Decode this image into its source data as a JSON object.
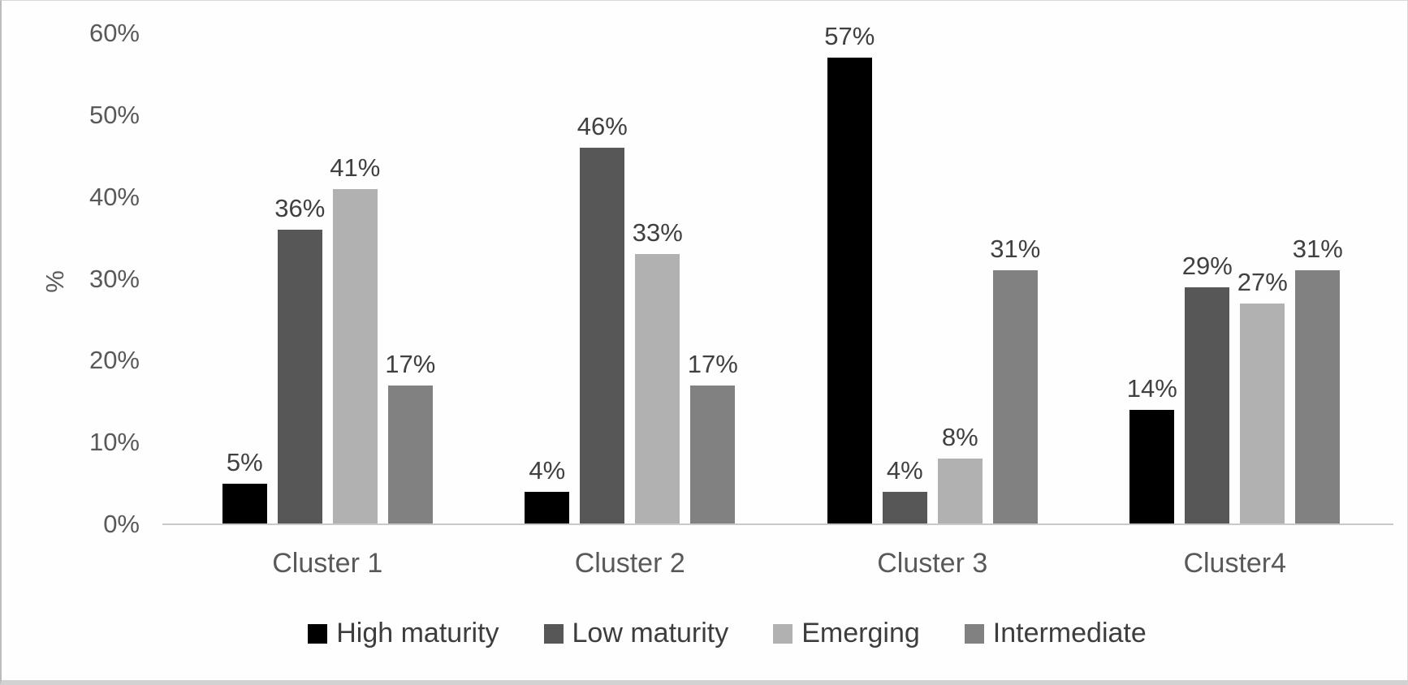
{
  "chart_data": {
    "type": "bar",
    "title": "",
    "xlabel": "",
    "ylabel": "%",
    "categories": [
      "Cluster 1",
      "Cluster 2",
      "Cluster 3",
      "Cluster4"
    ],
    "series": [
      {
        "name": "High maturity",
        "color": "#000000",
        "values": [
          5,
          4,
          57,
          14
        ]
      },
      {
        "name": "Low maturity",
        "color": "#575757",
        "values": [
          36,
          46,
          4,
          29
        ]
      },
      {
        "name": "Emerging",
        "color": "#b1b1b1",
        "values": [
          41,
          33,
          8,
          27
        ]
      },
      {
        "name": "Intermediate",
        "color": "#818181",
        "values": [
          17,
          17,
          31,
          31
        ]
      }
    ],
    "value_label_suffix": "%",
    "y_axis": {
      "min": 0,
      "max": 60,
      "tick_step": 10,
      "tick_labels": [
        "0%",
        "10%",
        "20%",
        "30%",
        "40%",
        "50%",
        "60%"
      ]
    },
    "grid": false,
    "legend_position": "bottom",
    "colors": {
      "axis_text": "#595959",
      "value_label_text": "#404040",
      "legend_text": "#3d3d3d",
      "axis_line": "#c9c9c9"
    }
  }
}
